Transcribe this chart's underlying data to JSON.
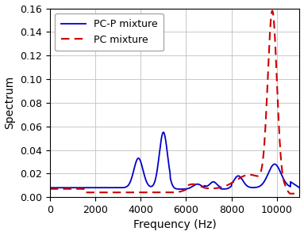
{
  "title": "",
  "xlabel": "Frequency (Hz)",
  "ylabel": "Spectrum",
  "xlim": [
    0,
    11000
  ],
  "ylim": [
    0,
    0.16
  ],
  "xticks": [
    0,
    2000,
    4000,
    6000,
    8000,
    10000
  ],
  "yticks": [
    0,
    0.02,
    0.04,
    0.06,
    0.08,
    0.1,
    0.12,
    0.14,
    0.16
  ],
  "legend": [
    "PC-P mixture",
    "PC mixture"
  ],
  "line1_color": "#0000cc",
  "line2_color": "#cc0000",
  "grid_color": "#c0c0c0",
  "background_color": "#ffffff"
}
